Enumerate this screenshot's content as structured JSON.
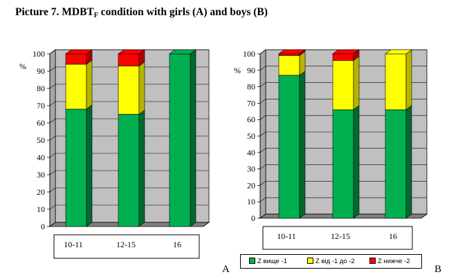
{
  "title": {
    "main": "Picture 7. MDBT",
    "subscript": "F",
    "rest": " condition with girls (A) and boys (B)"
  },
  "legend": [
    {
      "label": "Z вище -1",
      "color": "#00b050"
    },
    {
      "label": "Z від -1 до -2",
      "color": "#ffff00"
    },
    {
      "label": "Z нижче -2",
      "color": "#ff0000"
    }
  ],
  "colors": {
    "green": "#00b050",
    "green_side": "#006a30",
    "green_top": "#00c45a",
    "yellow": "#ffff00",
    "yellow_side": "#b5b500",
    "red": "#ff0000",
    "red_side": "#b00000",
    "wall": "#c0c0c0",
    "floor": "#808080"
  },
  "chart_data": [
    {
      "panel": "A",
      "type": "bar",
      "stacked": true,
      "ylabel": "%",
      "ylim": [
        0,
        100
      ],
      "yticks": [
        0,
        10,
        20,
        30,
        40,
        50,
        60,
        70,
        80,
        90,
        100
      ],
      "categories": [
        "10-11",
        "12-15",
        "16"
      ],
      "series": [
        {
          "name": "Z вище -1",
          "values": [
            68,
            65,
            100
          ]
        },
        {
          "name": "Z від -1 до -2",
          "values": [
            26,
            28,
            0
          ]
        },
        {
          "name": "Z нижче -2",
          "values": [
            6,
            7,
            0
          ]
        }
      ]
    },
    {
      "panel": "B",
      "type": "bar",
      "stacked": true,
      "ylabel": "%",
      "ylim": [
        0,
        100
      ],
      "yticks": [
        0,
        10,
        20,
        30,
        40,
        50,
        60,
        70,
        80,
        90,
        100
      ],
      "categories": [
        "10-11",
        "12-15",
        "16"
      ],
      "series": [
        {
          "name": "Z вище -1",
          "values": [
            87,
            66,
            66
          ]
        },
        {
          "name": "Z від -1 до -2",
          "values": [
            12,
            30,
            34
          ]
        },
        {
          "name": "Z нижче -2",
          "values": [
            1,
            4,
            0
          ]
        }
      ]
    }
  ]
}
